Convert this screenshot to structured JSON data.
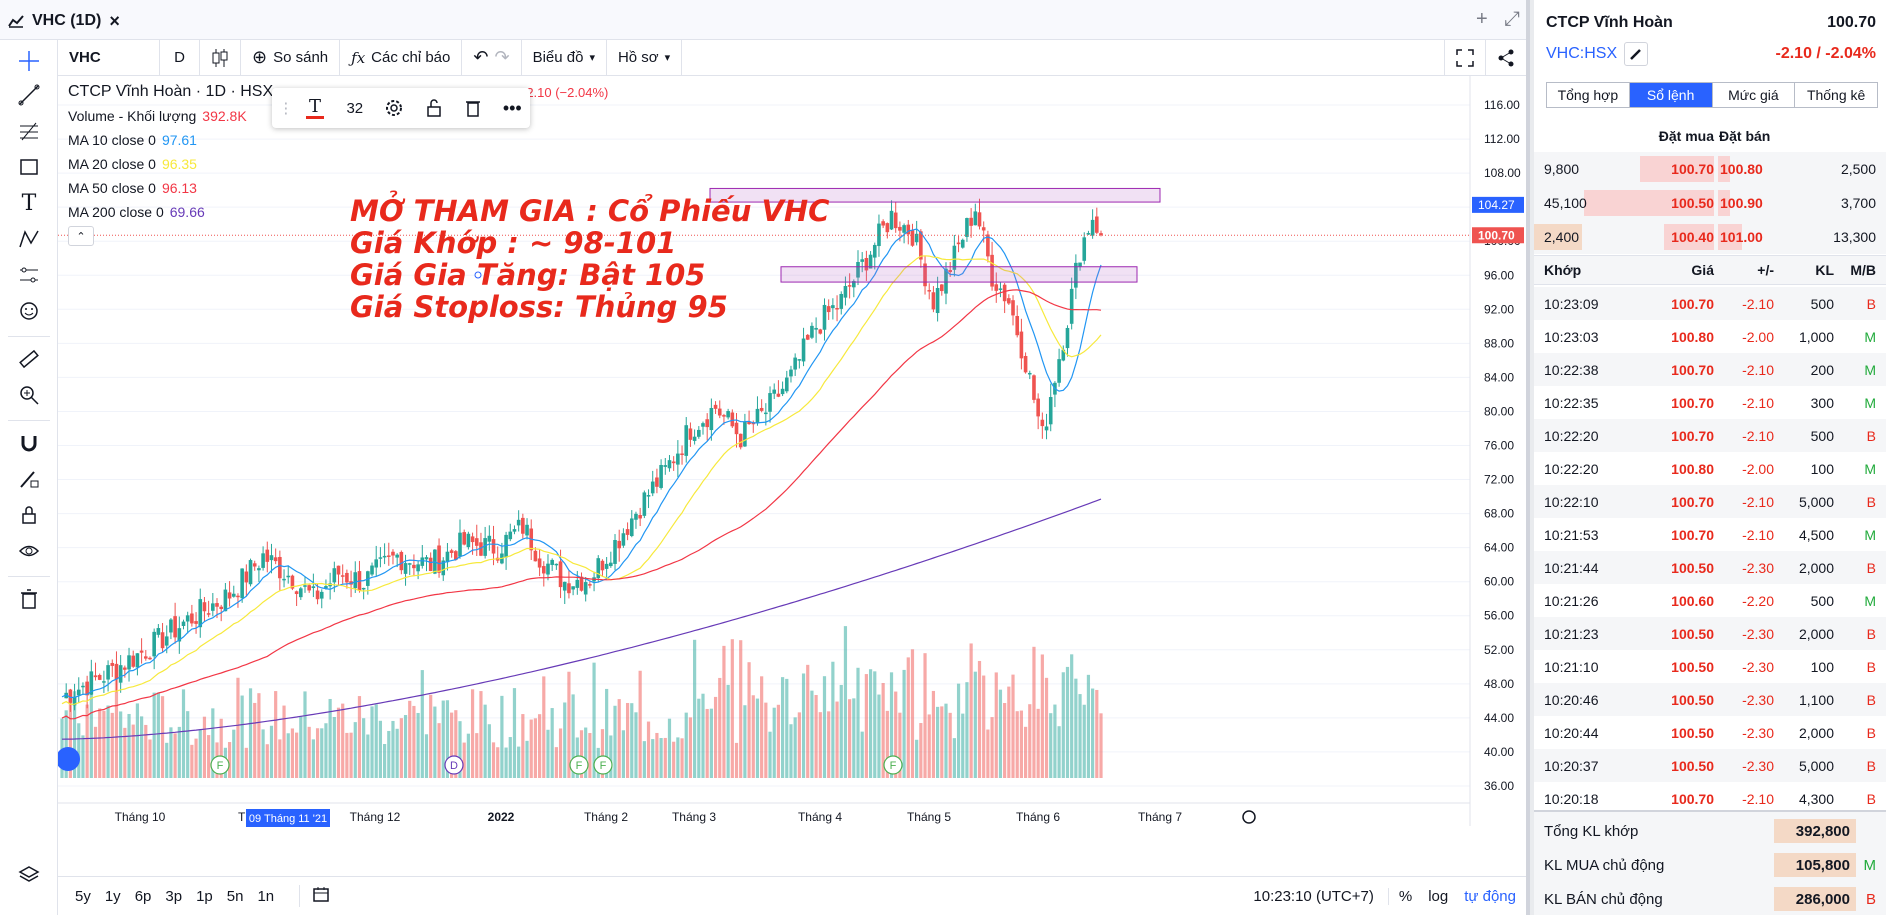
{
  "window": {
    "tab_title": "VHC (1D)",
    "close": "×",
    "plus": "+",
    "expand": "⤢"
  },
  "toolbar": {
    "symbol": "VHC",
    "interval": "D",
    "compare": "So sánh",
    "indicators": "Các chỉ báo",
    "chart_type": "Biểu đồ",
    "profile": "Hồ sơ"
  },
  "legend": {
    "title": "CTCP Vĩnh Hoàn · 1D · HSX",
    "ohlc": "O101.00 H102.40 L100.50 C100.70 −2.10 (−2.04%)",
    "volume_label": "Volume - Khối lượng",
    "volume_value": "392.8K",
    "ma": [
      {
        "label": "MA 10 close 0",
        "value": "97.61",
        "color": "#2196f3"
      },
      {
        "label": "MA 20 close 0",
        "value": "96.35",
        "color": "#f7e93c"
      },
      {
        "label": "MA 50 close 0",
        "value": "96.13",
        "color": "#f23645"
      },
      {
        "label": "MA 200 close 0",
        "value": "69.66",
        "color": "#673ab7"
      }
    ]
  },
  "draw_toolbar": {
    "font_size": "32"
  },
  "annotation": {
    "lines": [
      "MỞ THAM GIA : Cổ Phiếu VHC",
      "Giá Khớp : ~ 98-101",
      "Giá Gia Tăng: Bật 105",
      "Giá Stoploss: Thủng 95"
    ],
    "color": "#e8291c"
  },
  "price_axis": {
    "ticks": [
      "116.00",
      "112.00",
      "108.00",
      "104.00",
      "100.00",
      "96.00",
      "92.00",
      "88.00",
      "84.00",
      "80.00",
      "76.00",
      "72.00",
      "68.00",
      "64.00",
      "60.00",
      "56.00",
      "52.00",
      "48.00",
      "44.00",
      "40.00",
      "36.00"
    ],
    "last_price_label": "100.70",
    "level_label": "104.27"
  },
  "time_axis": {
    "labels": [
      "Tháng 10",
      "Th",
      "Tháng 12",
      "2022",
      "Tháng 2",
      "Tháng 3",
      "Tháng 4",
      "Tháng 5",
      "Tháng 6",
      "Tháng 7"
    ],
    "cursor_label": "09 Tháng 11 '21"
  },
  "events": [
    "F",
    "D",
    "F",
    "F",
    "F"
  ],
  "bottom": {
    "ranges": [
      "5y",
      "1y",
      "6p",
      "3p",
      "1p",
      "5n",
      "1n"
    ],
    "clock": "10:23:10 (UTC+7)",
    "percent": "%",
    "log": "log",
    "auto": "tự động"
  },
  "chart_data": {
    "type": "line",
    "title": "CTCP Vĩnh Hoàn 1D HSX",
    "ylim": [
      34,
      118
    ],
    "series": [
      {
        "name": "MA 10 close 0",
        "last": 97.61
      },
      {
        "name": "MA 20 close 0",
        "last": 96.35
      },
      {
        "name": "MA 50 close 0",
        "last": 96.13
      },
      {
        "name": "MA 200 close 0",
        "last": 69.66
      }
    ],
    "resistance_zone": [
      104.6,
      106.2
    ],
    "support_zone": [
      95.2,
      97.0
    ],
    "last_close": 100.7
  },
  "right_panel": {
    "company": "CTCP Vĩnh Hoàn",
    "price": "100.70",
    "ticker": "VHC:HSX",
    "change": "-2.10 / -2.04%",
    "tabs": [
      "Tổng hợp",
      "Sổ lệnh",
      "Mức giá",
      "Thống kê"
    ],
    "orderbook_headers": {
      "bid": "Đặt mua",
      "ask": "Đặt bán"
    },
    "orderbook": [
      {
        "bid_vol": "9,800",
        "bid": "100.70",
        "ask": "100.80",
        "ask_vol": "2,500"
      },
      {
        "bid_vol": "45,100",
        "bid": "100.50",
        "ask": "100.90",
        "ask_vol": "3,700"
      },
      {
        "bid_vol": "2,400",
        "bid": "100.40",
        "ask": "101.00",
        "ask_vol": "13,300"
      }
    ],
    "trade_headers": {
      "time": "Khớp",
      "price": "Giá",
      "chg": "+/-",
      "vol": "KL",
      "side": "M/B"
    },
    "trades": [
      {
        "time": "10:23:09",
        "price": "100.70",
        "chg": "-2.10",
        "vol": "500",
        "side": "B"
      },
      {
        "time": "10:23:03",
        "price": "100.80",
        "chg": "-2.00",
        "vol": "1,000",
        "side": "M"
      },
      {
        "time": "10:22:38",
        "price": "100.70",
        "chg": "-2.10",
        "vol": "200",
        "side": "M"
      },
      {
        "time": "10:22:35",
        "price": "100.70",
        "chg": "-2.10",
        "vol": "300",
        "side": "M"
      },
      {
        "time": "10:22:20",
        "price": "100.70",
        "chg": "-2.10",
        "vol": "500",
        "side": "B"
      },
      {
        "time": "10:22:20",
        "price": "100.80",
        "chg": "-2.00",
        "vol": "100",
        "side": "M"
      },
      {
        "time": "10:22:10",
        "price": "100.70",
        "chg": "-2.10",
        "vol": "5,000",
        "side": "B"
      },
      {
        "time": "10:21:53",
        "price": "100.70",
        "chg": "-2.10",
        "vol": "4,500",
        "side": "M"
      },
      {
        "time": "10:21:44",
        "price": "100.50",
        "chg": "-2.30",
        "vol": "2,000",
        "side": "B"
      },
      {
        "time": "10:21:26",
        "price": "100.60",
        "chg": "-2.20",
        "vol": "500",
        "side": "M"
      },
      {
        "time": "10:21:23",
        "price": "100.50",
        "chg": "-2.30",
        "vol": "2,000",
        "side": "B"
      },
      {
        "time": "10:21:10",
        "price": "100.50",
        "chg": "-2.30",
        "vol": "100",
        "side": "B"
      },
      {
        "time": "10:20:46",
        "price": "100.50",
        "chg": "-2.30",
        "vol": "1,100",
        "side": "B"
      },
      {
        "time": "10:20:44",
        "price": "100.50",
        "chg": "-2.30",
        "vol": "2,000",
        "side": "B"
      },
      {
        "time": "10:20:37",
        "price": "100.50",
        "chg": "-2.30",
        "vol": "5,000",
        "side": "B"
      },
      {
        "time": "10:20:18",
        "price": "100.70",
        "chg": "-2.10",
        "vol": "4,300",
        "side": "B"
      }
    ],
    "summary": [
      {
        "label": "Tổng KL khớp",
        "value": "392,800",
        "side": ""
      },
      {
        "label": "KL MUA chủ động",
        "value": "105,800",
        "side": "M"
      },
      {
        "label": "KL BÁN chủ động",
        "value": "286,000",
        "side": "B"
      }
    ]
  }
}
